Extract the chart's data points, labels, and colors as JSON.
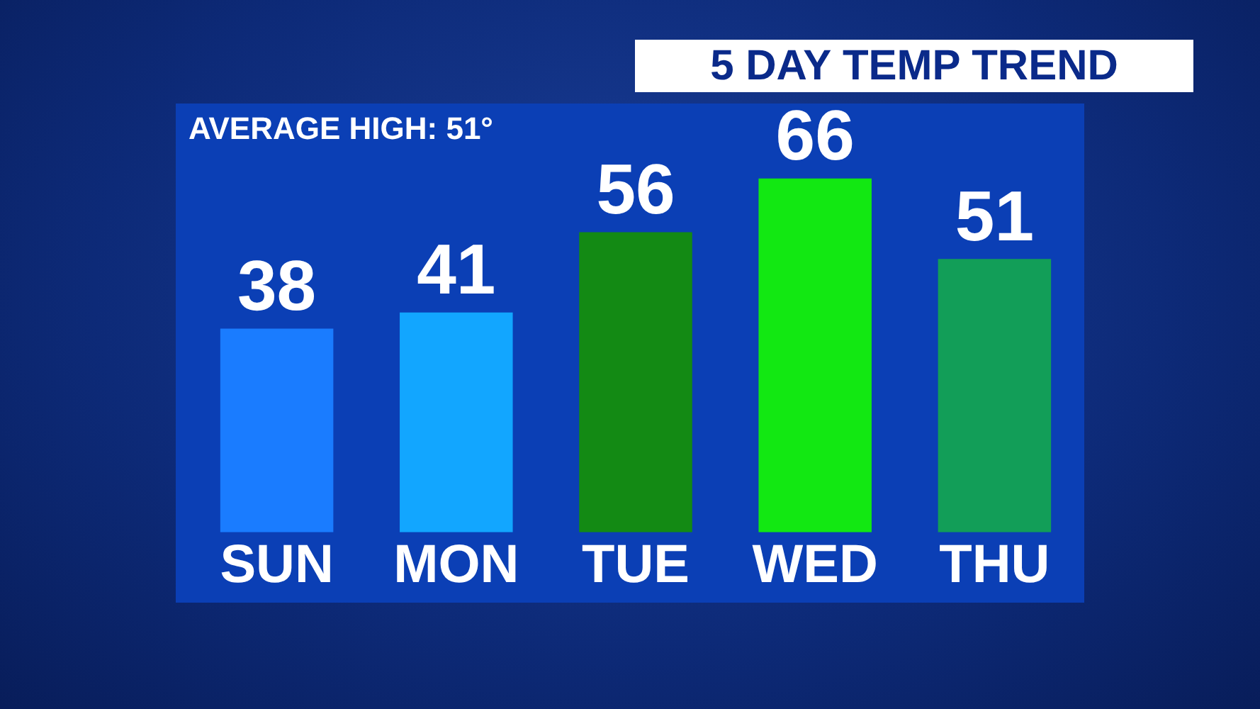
{
  "chart_data": {
    "type": "bar",
    "title": "5 DAY TEMP TREND",
    "annotations": [
      "AVERAGE HIGH: 51°"
    ],
    "categories": [
      "SUN",
      "MON",
      "TUE",
      "WED",
      "THU"
    ],
    "values": [
      38,
      41,
      56,
      66,
      51
    ],
    "colors": [
      "#1a7cff",
      "#12a6ff",
      "#138a14",
      "#12e812",
      "#129e58"
    ],
    "data_labels": true,
    "grid": false,
    "legend": false
  }
}
